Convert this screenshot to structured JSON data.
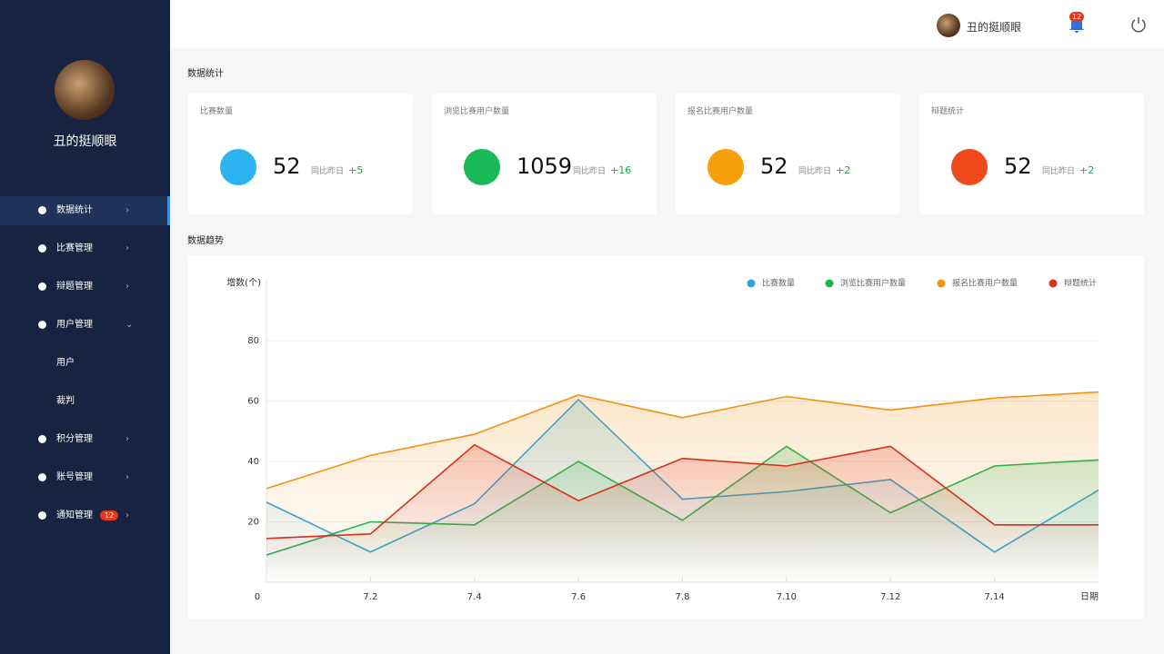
{
  "sidebar": {
    "user_name": "丑的挺顺眼",
    "menu": [
      "数据统计",
      "比赛管理",
      "辩题管理",
      "用户管理",
      "用户",
      "裁判",
      "积分管理",
      "账号管理",
      "通知管理"
    ],
    "notice_badge": "12"
  },
  "header": {
    "user_name": "丑的挺顺眼",
    "bell_badge": "12"
  },
  "stats": {
    "section_title": "数据统计",
    "compare_label": "同比昨日",
    "cards": [
      {
        "title": "比赛数量",
        "value": "52",
        "delta": "+5",
        "color": "#2cb3f0"
      },
      {
        "title": "浏览比赛用户数量",
        "value": "1059",
        "delta": "+16",
        "color": "#19b955"
      },
      {
        "title": "报名比赛用户数量",
        "value": "52",
        "delta": "+2",
        "color": "#f7a00c"
      },
      {
        "title": "辩题统计",
        "value": "52",
        "delta": "+2",
        "color": "#ee4a1c"
      }
    ]
  },
  "trend": {
    "section_title": "数据趋势",
    "chart": {
      "type": "line",
      "y_label": "增数(个)",
      "x_label": "日期",
      "origin_label": "0",
      "categories": [
        null,
        "7.2",
        "7.4",
        "7.6",
        "7.8",
        "7.10",
        "7.12",
        "7.14",
        null
      ],
      "ylim": [
        0,
        100
      ],
      "yticks": [
        20,
        40,
        60,
        80
      ],
      "grid": true,
      "legend": "top-right",
      "series": [
        {
          "name": "比赛数量",
          "color": "#29a6e0",
          "values": [
            26.5,
            10,
            26,
            60.5,
            27.5,
            30,
            34,
            10,
            30.5
          ]
        },
        {
          "name": "浏览比赛用户数量",
          "color": "#18b453",
          "values": [
            9,
            20,
            19,
            40,
            20.5,
            45,
            23,
            38.5,
            40.5
          ]
        },
        {
          "name": "报名比赛用户数量",
          "color": "#f39211",
          "values": [
            31,
            42,
            49,
            62,
            54.5,
            61.5,
            57,
            61,
            63
          ]
        },
        {
          "name": "辩题统计",
          "color": "#d9301a",
          "values": [
            14.5,
            16,
            45.5,
            27,
            41,
            38.5,
            45,
            19,
            19
          ]
        }
      ]
    }
  }
}
